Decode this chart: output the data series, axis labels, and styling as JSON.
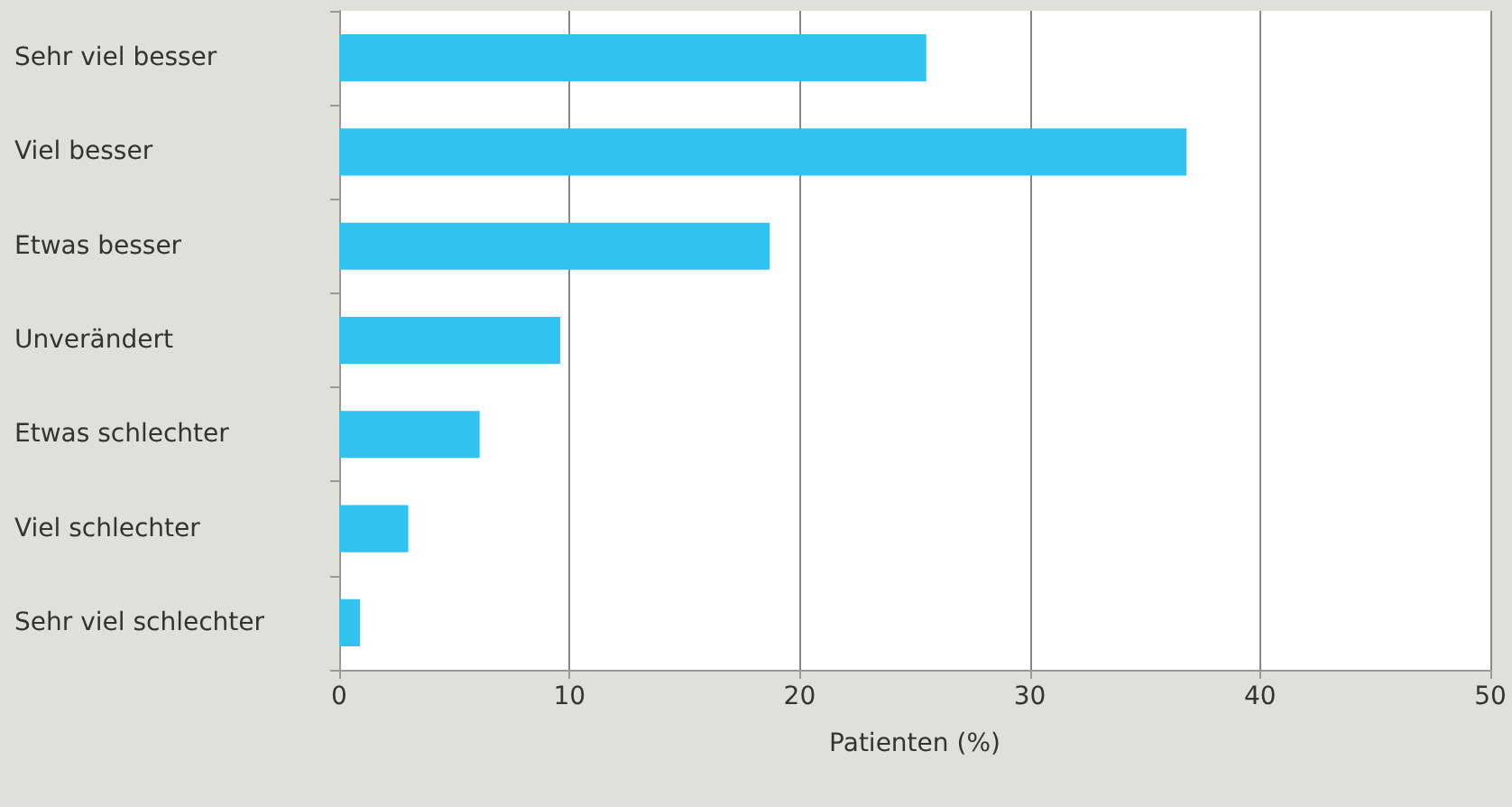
{
  "chart_data": {
    "type": "bar",
    "orientation": "horizontal",
    "categories": [
      "Sehr viel besser",
      "Viel besser",
      "Etwas besser",
      "Unverändert",
      "Etwas schlechter",
      "Viel schlechter",
      "Sehr viel schlechter"
    ],
    "values": [
      25.5,
      36.8,
      18.7,
      9.6,
      6.1,
      3.0,
      0.9
    ],
    "color": "#30c3f0",
    "xlim": [
      0,
      50
    ],
    "xticks": [
      0,
      10,
      20,
      30,
      40,
      50
    ],
    "xlabel": "Patienten (%)",
    "grid": "x"
  }
}
